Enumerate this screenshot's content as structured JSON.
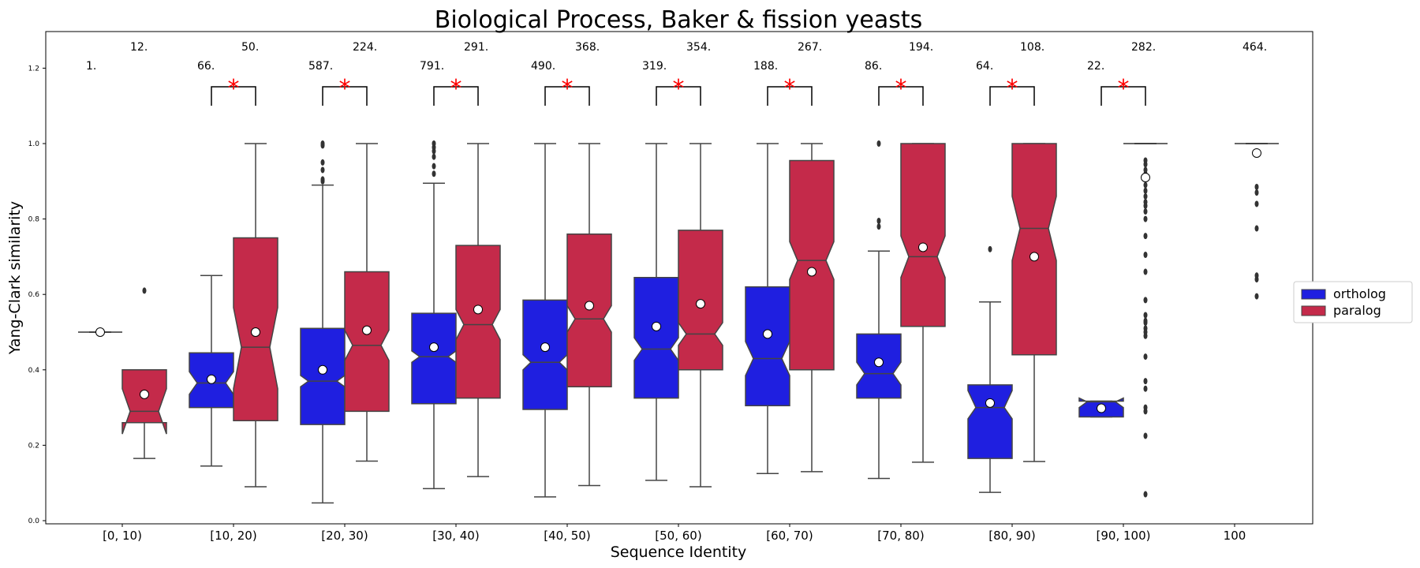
{
  "chart_data": {
    "type": "box",
    "title": "Biological Process, Baker & fission yeasts",
    "xlabel": "Sequence Identity",
    "ylabel": "Yang-Clark similarity",
    "ylim": [
      0.0,
      1.3
    ],
    "yticks": [
      "0.0",
      "0.2",
      "0.4",
      "0.6",
      "0.8",
      "1.0",
      "1.2"
    ],
    "categories": [
      "[0, 10)",
      "[10, 20)",
      "[20, 30)",
      "[30, 40)",
      "[40, 50)",
      "[50, 60)",
      "[60, 70)",
      "[70, 80)",
      "[80, 90)",
      "[90, 100)",
      "100"
    ],
    "legend": {
      "position": "right",
      "items": [
        {
          "name": "ortholog",
          "color": "#1f1fe0"
        },
        {
          "name": "paralog",
          "color": "#c42a4a"
        }
      ]
    },
    "colors": {
      "ortholog": "#1f1fe0",
      "paralog": "#c42a4a",
      "significance": "#ff0000",
      "whisker": "#444444",
      "outlier": "#333333"
    },
    "significance_marker": "*",
    "significant_categories": [
      "[10, 20)",
      "[20, 30)",
      "[30, 40)",
      "[40, 50)",
      "[50, 60)",
      "[60, 70)",
      "[70, 80)",
      "[80, 90)",
      "[90, 100)"
    ],
    "series": [
      {
        "name": "ortholog",
        "counts": [
          "1.",
          "66.",
          "587.",
          "791.",
          "490.",
          "319.",
          "188.",
          "86.",
          "64.",
          "22.",
          ""
        ],
        "boxes": [
          {
            "q1": 0.5,
            "median": 0.5,
            "q3": 0.5,
            "whislo": 0.5,
            "whishi": 0.5,
            "mean": 0.5,
            "notch_lo": 0.5,
            "notch_hi": 0.5,
            "fliers": []
          },
          {
            "q1": 0.3,
            "median": 0.365,
            "q3": 0.445,
            "whislo": 0.145,
            "whishi": 0.65,
            "mean": 0.375,
            "notch_lo": 0.335,
            "notch_hi": 0.395,
            "fliers": []
          },
          {
            "q1": 0.255,
            "median": 0.37,
            "q3": 0.51,
            "whislo": 0.047,
            "whishi": 0.89,
            "mean": 0.4,
            "notch_lo": 0.355,
            "notch_hi": 0.385,
            "fliers": [
              0.9,
              0.905,
              0.93,
              0.95,
              0.995,
              1.0
            ]
          },
          {
            "q1": 0.31,
            "median": 0.435,
            "q3": 0.55,
            "whislo": 0.085,
            "whishi": 0.895,
            "mean": 0.46,
            "notch_lo": 0.42,
            "notch_hi": 0.45,
            "fliers": [
              0.92,
              0.94,
              0.965,
              0.98,
              0.99,
              1.0
            ]
          },
          {
            "q1": 0.295,
            "median": 0.42,
            "q3": 0.585,
            "whislo": 0.063,
            "whishi": 1.0,
            "mean": 0.46,
            "notch_lo": 0.4,
            "notch_hi": 0.44,
            "fliers": []
          },
          {
            "q1": 0.325,
            "median": 0.455,
            "q3": 0.645,
            "whislo": 0.107,
            "whishi": 1.0,
            "mean": 0.515,
            "notch_lo": 0.425,
            "notch_hi": 0.485,
            "fliers": []
          },
          {
            "q1": 0.305,
            "median": 0.43,
            "q3": 0.62,
            "whislo": 0.125,
            "whishi": 1.0,
            "mean": 0.495,
            "notch_lo": 0.385,
            "notch_hi": 0.475,
            "fliers": []
          },
          {
            "q1": 0.325,
            "median": 0.39,
            "q3": 0.495,
            "whislo": 0.112,
            "whishi": 0.715,
            "mean": 0.42,
            "notch_lo": 0.36,
            "notch_hi": 0.42,
            "fliers": [
              0.78,
              0.795,
              1.0
            ]
          },
          {
            "q1": 0.165,
            "median": 0.3,
            "q3": 0.36,
            "whislo": 0.075,
            "whishi": 0.58,
            "mean": 0.312,
            "notch_lo": 0.27,
            "notch_hi": 0.345,
            "fliers": [
              0.72
            ]
          },
          {
            "q1": 0.275,
            "median": 0.315,
            "q3": 0.317,
            "whislo": 0.275,
            "whishi": 0.317,
            "mean": 0.298,
            "notch_lo": 0.3,
            "notch_hi": 0.325,
            "fliers": []
          },
          null
        ]
      },
      {
        "name": "paralog",
        "counts": [
          "12.",
          "50.",
          "224.",
          "291.",
          "368.",
          "354.",
          "267.",
          "194.",
          "108.",
          "282.",
          "464."
        ],
        "boxes": [
          {
            "q1": 0.26,
            "median": 0.29,
            "q3": 0.4,
            "whislo": 0.165,
            "whishi": 0.4,
            "mean": 0.335,
            "notch_lo": 0.23,
            "notch_hi": 0.35,
            "fliers": [
              0.61
            ]
          },
          {
            "q1": 0.265,
            "median": 0.46,
            "q3": 0.75,
            "whislo": 0.09,
            "whishi": 1.0,
            "mean": 0.5,
            "notch_lo": 0.35,
            "notch_hi": 0.565,
            "fliers": []
          },
          {
            "q1": 0.29,
            "median": 0.465,
            "q3": 0.66,
            "whislo": 0.158,
            "whishi": 1.0,
            "mean": 0.505,
            "notch_lo": 0.425,
            "notch_hi": 0.505,
            "fliers": []
          },
          {
            "q1": 0.325,
            "median": 0.52,
            "q3": 0.73,
            "whislo": 0.117,
            "whishi": 1.0,
            "mean": 0.56,
            "notch_lo": 0.48,
            "notch_hi": 0.56,
            "fliers": []
          },
          {
            "q1": 0.355,
            "median": 0.535,
            "q3": 0.76,
            "whislo": 0.093,
            "whishi": 1.0,
            "mean": 0.57,
            "notch_lo": 0.5,
            "notch_hi": 0.57,
            "fliers": []
          },
          {
            "q1": 0.4,
            "median": 0.495,
            "q3": 0.77,
            "whislo": 0.09,
            "whishi": 1.0,
            "mean": 0.575,
            "notch_lo": 0.465,
            "notch_hi": 0.525,
            "fliers": []
          },
          {
            "q1": 0.4,
            "median": 0.69,
            "q3": 0.955,
            "whislo": 0.13,
            "whishi": 1.0,
            "mean": 0.66,
            "notch_lo": 0.64,
            "notch_hi": 0.74,
            "fliers": []
          },
          {
            "q1": 0.515,
            "median": 0.7,
            "q3": 1.0,
            "whislo": 0.155,
            "whishi": 1.0,
            "mean": 0.725,
            "notch_lo": 0.645,
            "notch_hi": 0.755,
            "fliers": []
          },
          {
            "q1": 0.44,
            "median": 0.775,
            "q3": 1.0,
            "whislo": 0.157,
            "whishi": 1.0,
            "mean": 0.7,
            "notch_lo": 0.69,
            "notch_hi": 0.86,
            "fliers": []
          },
          {
            "q1": 1.0,
            "median": 1.0,
            "q3": 1.0,
            "whislo": 1.0,
            "whishi": 1.0,
            "mean": 0.91,
            "notch_lo": 1.0,
            "notch_hi": 1.0,
            "fliers": [
              0.07,
              0.225,
              0.29,
              0.3,
              0.35,
              0.37,
              0.435,
              0.49,
              0.5,
              0.51,
              0.525,
              0.53,
              0.545,
              0.585,
              0.66,
              0.705,
              0.755,
              0.8,
              0.82,
              0.835,
              0.845,
              0.86,
              0.875,
              0.89,
              0.905,
              0.92,
              0.93,
              0.945,
              0.955
            ]
          },
          {
            "q1": 1.0,
            "median": 1.0,
            "q3": 1.0,
            "whislo": 1.0,
            "whishi": 1.0,
            "mean": 0.975,
            "notch_lo": 1.0,
            "notch_hi": 1.0,
            "fliers": [
              0.595,
              0.64,
              0.65,
              0.775,
              0.84,
              0.87,
              0.885
            ]
          }
        ]
      }
    ]
  }
}
